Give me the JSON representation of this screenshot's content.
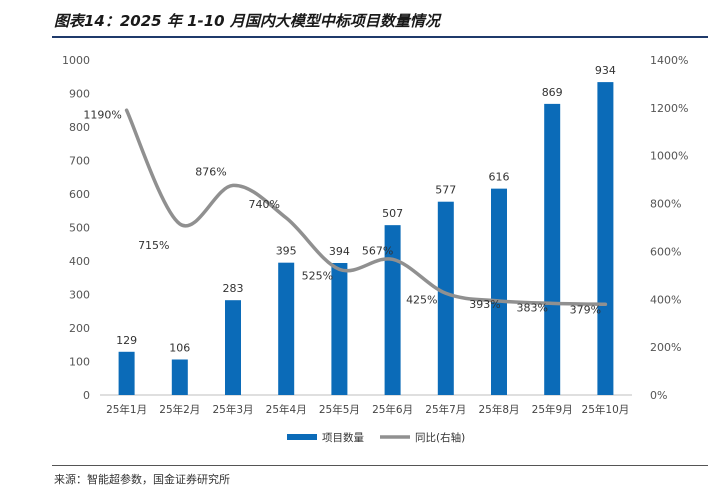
{
  "header": {
    "title": "图表14：2025 年 1-10 月国内大模型中标项目数量情况"
  },
  "footer": {
    "source": "来源：智能超参数，国金证券研究所"
  },
  "chart_data": {
    "type": "bar",
    "title": "",
    "categories": [
      "25年1月",
      "25年2月",
      "25年3月",
      "25年4月",
      "25年5月",
      "25年6月",
      "25年7月",
      "25年8月",
      "25年9月",
      "25年10月"
    ],
    "series": [
      {
        "name": "项目数量",
        "type": "bar",
        "axis": "left",
        "color": "#0b6bb8",
        "values": [
          129,
          106,
          283,
          395,
          394,
          507,
          577,
          616,
          869,
          934
        ]
      },
      {
        "name": "同比(右轴)",
        "type": "line",
        "axis": "right",
        "color": "#909090",
        "values": [
          1190,
          715,
          876,
          740,
          525,
          567,
          425,
          393,
          383,
          379
        ],
        "labels": [
          "1190%",
          "715%",
          "876%",
          "740%",
          "525%",
          "567%",
          "425%",
          "393%",
          "383%",
          "379%"
        ]
      }
    ],
    "y_left": {
      "range": [
        0,
        1000
      ],
      "ticks": [
        "0",
        "100",
        "200",
        "300",
        "400",
        "500",
        "600",
        "700",
        "800",
        "900",
        "1000"
      ]
    },
    "y_right": {
      "range": [
        0,
        1400
      ],
      "ticks": [
        "0%",
        "200%",
        "400%",
        "600%",
        "800%",
        "1000%",
        "1200%",
        "1400%"
      ]
    },
    "grid": false,
    "legend_position": "bottom"
  }
}
